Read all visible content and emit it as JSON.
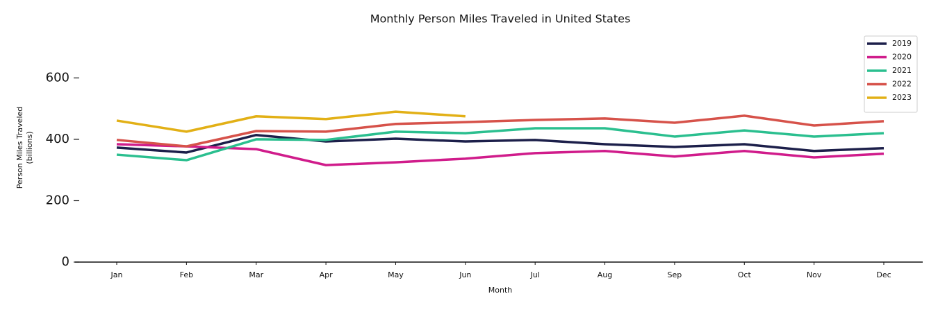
{
  "chart_data": {
    "type": "line",
    "title": "Monthly Person Miles Traveled in United States",
    "x_label": "Month",
    "y_label": [
      "Person Miles Traveled",
      "(billions)"
    ],
    "categories": [
      "Jan",
      "Feb",
      "Mar",
      "Apr",
      "May",
      "Jun",
      "Jul",
      "Aug",
      "Sep",
      "Oct",
      "Nov",
      "Dec"
    ],
    "series": [
      {
        "name": "2019",
        "color": "#1c1f4a",
        "values": [
          373,
          357,
          414,
          393,
          402,
          393,
          398,
          384,
          375,
          384,
          362,
          371
        ]
      },
      {
        "name": "2020",
        "color": "#d01c8b",
        "values": [
          384,
          377,
          368,
          316,
          325,
          337,
          355,
          362,
          344,
          362,
          341,
          353
        ]
      },
      {
        "name": "2021",
        "color": "#2bbf8f",
        "values": [
          350,
          332,
          400,
          398,
          425,
          420,
          436,
          436,
          409,
          429,
          409,
          420
        ]
      },
      {
        "name": "2022",
        "color": "#d6524a",
        "values": [
          398,
          377,
          427,
          425,
          450,
          456,
          463,
          468,
          454,
          477,
          445,
          459
        ]
      },
      {
        "name": "2023",
        "color": "#e2b016",
        "values": [
          461,
          425,
          475,
          466,
          490,
          475,
          null,
          null,
          null,
          null,
          null,
          null
        ]
      }
    ],
    "ylim": [
      0,
      750
    ],
    "yticks": [
      0,
      200,
      400,
      600
    ],
    "legend": "upper right"
  }
}
